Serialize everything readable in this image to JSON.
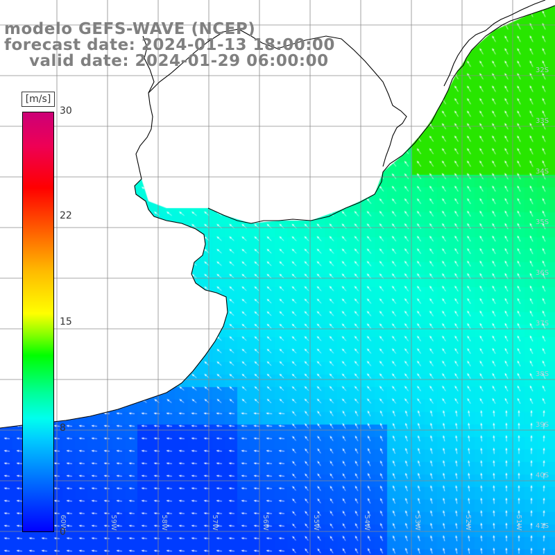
{
  "header": {
    "model": "modelo GEFS-WAVE (NCEP)",
    "forecast_date": "forecast date: 2024-01-13 18:00:00",
    "valid_date": "valid date: 2024-01-29 06:00:00"
  },
  "colorbar": {
    "unit": "[m/s]",
    "ticks": [
      "30",
      "22",
      "15",
      "8",
      "0"
    ],
    "tick_values": [
      30,
      22,
      15,
      8,
      0
    ],
    "min": 0,
    "max": 30
  },
  "grid": {
    "lat_labels": [
      "32S",
      "33S",
      "34S",
      "35S",
      "36S",
      "37S",
      "38S",
      "39S",
      "40S",
      "41S"
    ],
    "lon_labels": [
      "60W",
      "59W",
      "58W",
      "57W",
      "56W",
      "55W",
      "54W",
      "53W",
      "52W",
      "51W"
    ]
  },
  "colors": {
    "coast": "#000000",
    "grid": "#8a8a8a",
    "arrow": "#ffffff",
    "title": "#808080"
  }
}
